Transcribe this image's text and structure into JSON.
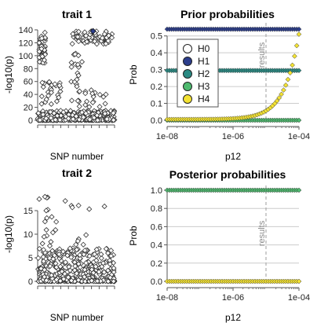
{
  "colors": {
    "H0": "#ffffff",
    "H1": "#2c3e8c",
    "H2": "#2a8a83",
    "H3": "#4fba6f",
    "H4": "#f3e233",
    "manhattan_points": "#333333",
    "gridline": "#cccccc",
    "result_line": "#9e9e9e"
  },
  "chart_data": [
    {
      "type": "scatter",
      "title": "trait 1",
      "xlabel": "SNP number",
      "ylabel": "-log10(p)",
      "yticks": [
        0,
        20,
        40,
        60,
        80,
        100,
        120,
        140
      ],
      "ylim": [
        0,
        140
      ],
      "highlight": {
        "marker": "diamond",
        "y": 138,
        "x": 0.72,
        "color": "#2c3e8c"
      },
      "clusters": [
        {
          "x_range": [
            0.02,
            0.1
          ],
          "y_range": [
            88,
            136
          ],
          "n": 40
        },
        {
          "x_range": [
            0.45,
            0.97
          ],
          "y_range": [
            118,
            138
          ],
          "n": 70
        },
        {
          "x_range": [
            0.05,
            0.3
          ],
          "y_range": [
            25,
            62
          ],
          "n": 25
        },
        {
          "x_range": [
            0.42,
            0.6
          ],
          "y_range": [
            20,
            105
          ],
          "n": 25
        },
        {
          "x_range": [
            0.6,
            0.9
          ],
          "y_range": [
            10,
            50
          ],
          "n": 20
        },
        {
          "x_range": [
            0.0,
            1.0
          ],
          "y_range": [
            0,
            15
          ],
          "n": 420
        }
      ]
    },
    {
      "type": "line",
      "title": "Prior probabilities",
      "xlabel": "p12",
      "ylabel": "Prob",
      "xscale": "log",
      "xlim": [
        1e-08,
        0.0001
      ],
      "xticks": [
        "1e-08",
        "1e-06",
        "1e-04"
      ],
      "ylim": [
        0,
        0.55
      ],
      "yticks": [
        "0.0",
        "0.1",
        "0.2",
        "0.3",
        "0.4",
        "0.5"
      ],
      "vline": {
        "x": 1e-05,
        "label": "results"
      },
      "legend": {
        "position": "top-left",
        "entries": [
          "H0",
          "H1",
          "H2",
          "H3",
          "H4"
        ]
      },
      "series": [
        {
          "name": "H0",
          "y": "0.5 - 0.5*p12_scale"
        },
        {
          "name": "H1",
          "values_at_ends": [
            0.5,
            0.5
          ]
        },
        {
          "name": "H2",
          "values_at_ends": [
            0.3,
            0.3
          ]
        },
        {
          "name": "H3",
          "values_at_ends": [
            0.0,
            0.0
          ]
        },
        {
          "name": "H4",
          "values_at_ends": [
            0.0,
            0.51
          ]
        }
      ]
    },
    {
      "type": "scatter",
      "title": "trait 2",
      "xlabel": "SNP number",
      "ylabel": "-log10(p)",
      "yticks": [
        0,
        5,
        10,
        15
      ],
      "ylim": [
        0,
        18
      ],
      "clusters": [
        {
          "x_range": [
            0.02,
            0.95
          ],
          "y_range": [
            15,
            18
          ],
          "n": 12
        },
        {
          "x_range": [
            0.05,
            0.25
          ],
          "y_range": [
            5,
            14
          ],
          "n": 14
        },
        {
          "x_range": [
            0.45,
            0.65
          ],
          "y_range": [
            4,
            10
          ],
          "n": 14
        },
        {
          "x_range": [
            0.0,
            1.0
          ],
          "y_range": [
            0,
            7
          ],
          "n": 420
        }
      ]
    },
    {
      "type": "line",
      "title": "Posterior probabilities",
      "xlabel": "p12",
      "ylabel": "Prob",
      "xscale": "log",
      "xlim": [
        1e-08,
        0.0001
      ],
      "xticks": [
        "1e-08",
        "1e-06",
        "1e-04"
      ],
      "ylim": [
        0,
        1.0
      ],
      "yticks": [
        "0.0",
        "0.2",
        "0.4",
        "0.6",
        "0.8",
        "1.0"
      ],
      "vline": {
        "x": 1e-05,
        "label": "results"
      },
      "series": [
        {
          "name": "H3",
          "values_at_ends": [
            1.0,
            1.0
          ]
        },
        {
          "name": "H4",
          "values_at_ends": [
            0.0,
            0.0
          ]
        }
      ]
    }
  ]
}
